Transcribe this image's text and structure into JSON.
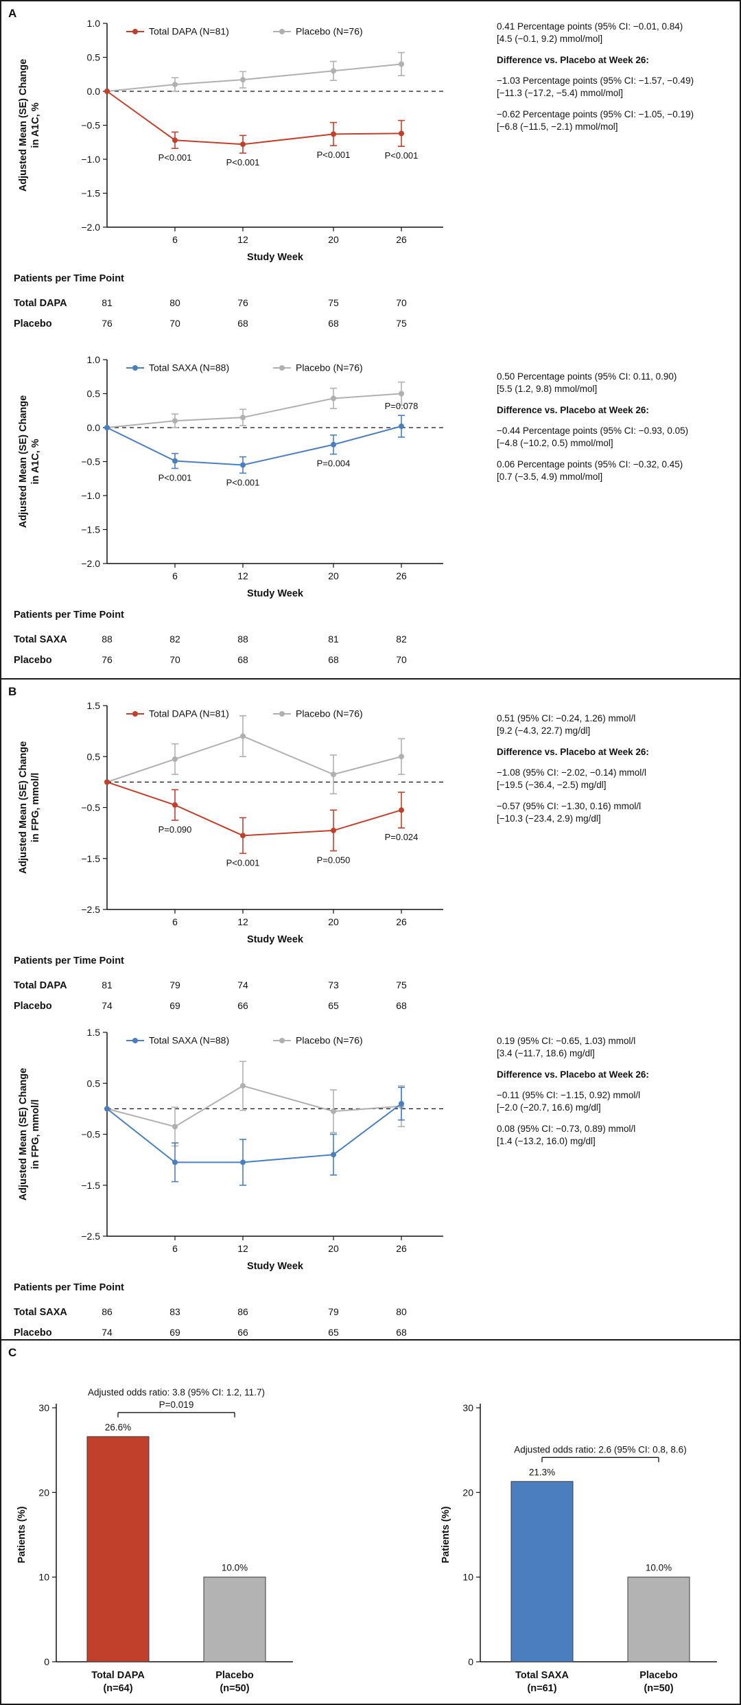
{
  "panels": [
    {
      "label": "A"
    },
    {
      "label": "B"
    },
    {
      "label": "C"
    }
  ],
  "colors": {
    "dapa_red": "#c0402c",
    "saxa_blue": "#4a7ebf",
    "placebo_gray": "#b0b0b0"
  },
  "chart_data": [
    {
      "id": "a1",
      "panel": "A",
      "type": "line",
      "y_label_lines": [
        "Adjusted Mean (SE) Change",
        "in A1C, %"
      ],
      "x_label": "Study Week",
      "ylim": [
        -2.0,
        1.0
      ],
      "yticks": [
        {
          "v": 1.0,
          "label": "1.0"
        },
        {
          "v": 0.5,
          "label": "0.5"
        },
        {
          "v": 0.0,
          "label": "0.0"
        },
        {
          "v": -0.5,
          "label": "−0.5"
        },
        {
          "v": -1.0,
          "label": "−1.0"
        },
        {
          "v": -1.5,
          "label": "−1.5"
        },
        {
          "v": -2.0,
          "label": "−2.0"
        }
      ],
      "x": [
        0,
        6,
        12,
        20,
        26
      ],
      "xticks": [
        {
          "v": 6,
          "label": "6"
        },
        {
          "v": 12,
          "label": "12"
        },
        {
          "v": 20,
          "label": "20"
        },
        {
          "v": 26,
          "label": "26"
        }
      ],
      "zero_line": true,
      "series": [
        {
          "name": "Total DAPA (N=81)",
          "color": "#c0402c",
          "values": [
            0,
            -0.72,
            -0.78,
            -0.63,
            -0.62
          ],
          "se": [
            0,
            0.12,
            0.13,
            0.17,
            0.19
          ]
        },
        {
          "name": "Placebo (N=76)",
          "color": "#b0b0b0",
          "values": [
            0,
            0.1,
            0.17,
            0.3,
            0.4
          ],
          "se": [
            0,
            0.1,
            0.12,
            0.14,
            0.17
          ]
        }
      ],
      "p_labels": [
        {
          "week": 6,
          "series": 0,
          "text": "P<0.001",
          "pos": "below"
        },
        {
          "week": 12,
          "series": 0,
          "text": "P<0.001",
          "pos": "below"
        },
        {
          "week": 20,
          "series": 0,
          "text": "P<0.001",
          "pos": "below"
        },
        {
          "week": 26,
          "series": 0,
          "text": "P<0.001",
          "pos": "below"
        }
      ],
      "annotation_groups": [
        {
          "bold": false,
          "lines": [
            "0.41 Percentage points (95% CI: −0.01, 0.84)",
            "[4.5 (−0.1, 9.2) mmol/mol]"
          ]
        },
        {
          "bold": true,
          "lines": [
            "Difference vs. Placebo at Week 26:"
          ]
        },
        {
          "bold": false,
          "lines": [
            "−1.03 Percentage points (95% CI: −1.57, −0.49)",
            "[−11.3 (−17.2, −5.4) mmol/mol]"
          ]
        },
        {
          "bold": false,
          "lines": [
            "−0.62 Percentage points (95% CI: −1.05, −0.19)",
            "[−6.8 (−11.5, −2.1) mmol/mol]"
          ]
        }
      ],
      "table": {
        "title": "Patients per Time Point",
        "rows": [
          {
            "label": "Total DAPA",
            "values": [
              "81",
              "80",
              "76",
              "75",
              "70"
            ]
          },
          {
            "label": "Placebo",
            "values": [
              "76",
              "70",
              "68",
              "68",
              "75"
            ]
          }
        ]
      }
    },
    {
      "id": "a2",
      "panel": "A",
      "type": "line",
      "y_label_lines": [
        "Adjusted Mean (SE) Change",
        "in A1C, %"
      ],
      "x_label": "Study Week",
      "ylim": [
        -2.0,
        1.0
      ],
      "yticks": [
        {
          "v": 1.0,
          "label": "1.0"
        },
        {
          "v": 0.5,
          "label": "0.5"
        },
        {
          "v": 0.0,
          "label": "0.0"
        },
        {
          "v": -0.5,
          "label": "−0.5"
        },
        {
          "v": -1.0,
          "label": "−1.0"
        },
        {
          "v": -1.5,
          "label": "−1.5"
        },
        {
          "v": -2.0,
          "label": "−2.0"
        }
      ],
      "x": [
        0,
        6,
        12,
        20,
        26
      ],
      "xticks": [
        {
          "v": 6,
          "label": "6"
        },
        {
          "v": 12,
          "label": "12"
        },
        {
          "v": 20,
          "label": "20"
        },
        {
          "v": 26,
          "label": "26"
        }
      ],
      "zero_line": true,
      "series": [
        {
          "name": "Total SAXA (N=88)",
          "color": "#4a7ebf",
          "values": [
            0,
            -0.49,
            -0.55,
            -0.25,
            0.02
          ],
          "se": [
            0,
            0.11,
            0.12,
            0.14,
            0.16
          ]
        },
        {
          "name": "Placebo (N=76)",
          "color": "#b0b0b0",
          "values": [
            0,
            0.1,
            0.15,
            0.43,
            0.5
          ],
          "se": [
            0,
            0.1,
            0.12,
            0.15,
            0.17
          ]
        }
      ],
      "p_labels": [
        {
          "week": 6,
          "series": 0,
          "text": "P<0.001",
          "pos": "below"
        },
        {
          "week": 12,
          "series": 0,
          "text": "P<0.001",
          "pos": "below"
        },
        {
          "week": 20,
          "series": 0,
          "text": "P=0.004",
          "pos": "below"
        },
        {
          "week": 26,
          "series": 0,
          "text": "P=0.078",
          "pos": "above"
        }
      ],
      "annotation_groups": [
        {
          "bold": false,
          "lines": [
            "0.50 Percentage points (95% CI: 0.11, 0.90)",
            "[5.5 (1.2, 9.8) mmol/mol]"
          ]
        },
        {
          "bold": true,
          "lines": [
            "Difference vs. Placebo at Week 26:"
          ]
        },
        {
          "bold": false,
          "lines": [
            "−0.44 Percentage points (95% CI: −0.93, 0.05)",
            "[−4.8 (−10.2, 0.5) mmol/mol]"
          ]
        },
        {
          "bold": false,
          "lines": [
            "0.06 Percentage points (95% CI: −0.32, 0.45)",
            "[0.7 (−3.5, 4.9) mmol/mol]"
          ]
        }
      ],
      "table": {
        "title": "Patients per Time Point",
        "rows": [
          {
            "label": "Total SAXA",
            "values": [
              "88",
              "82",
              "88",
              "81",
              "82"
            ]
          },
          {
            "label": "Placebo",
            "values": [
              "76",
              "70",
              "68",
              "68",
              "70"
            ]
          }
        ]
      }
    },
    {
      "id": "b1",
      "panel": "B",
      "type": "line",
      "y_label_lines": [
        "Adjusted Mean (SE) Change",
        "in FPG, mmol/l"
      ],
      "x_label": "Study Week",
      "ylim": [
        -2.5,
        1.5
      ],
      "yticks": [
        {
          "v": 1.5,
          "label": "1.5"
        },
        {
          "v": 0.5,
          "label": "0.5"
        },
        {
          "v": -0.5,
          "label": "−0.5"
        },
        {
          "v": -1.5,
          "label": "−1.5"
        },
        {
          "v": -2.5,
          "label": "−2.5"
        }
      ],
      "x": [
        0,
        6,
        12,
        20,
        26
      ],
      "xticks": [
        {
          "v": 6,
          "label": "6"
        },
        {
          "v": 12,
          "label": "12"
        },
        {
          "v": 20,
          "label": "20"
        },
        {
          "v": 26,
          "label": "26"
        }
      ],
      "zero_line": true,
      "series": [
        {
          "name": "Total DAPA (N=81)",
          "color": "#c0402c",
          "values": [
            0,
            -0.45,
            -1.05,
            -0.95,
            -0.55
          ],
          "se": [
            0,
            0.3,
            0.35,
            0.4,
            0.35
          ]
        },
        {
          "name": "Placebo (N=76)",
          "color": "#b0b0b0",
          "values": [
            0,
            0.45,
            0.9,
            0.15,
            0.5
          ],
          "se": [
            0,
            0.3,
            0.4,
            0.38,
            0.35
          ]
        }
      ],
      "p_labels": [
        {
          "week": 6,
          "series": 0,
          "text": "P=0.090",
          "pos": "below"
        },
        {
          "week": 12,
          "series": 0,
          "text": "P<0.001",
          "pos": "below"
        },
        {
          "week": 20,
          "series": 0,
          "text": "P=0.050",
          "pos": "below"
        },
        {
          "week": 26,
          "series": 0,
          "text": "P=0.024",
          "pos": "below"
        }
      ],
      "annotation_groups": [
        {
          "bold": false,
          "lines": [
            "0.51 (95% CI: −0.24, 1.26) mmol/l",
            "[9.2 (−4.3, 22.7) mg/dl]"
          ]
        },
        {
          "bold": true,
          "lines": [
            "Difference vs. Placebo at Week 26:"
          ]
        },
        {
          "bold": false,
          "lines": [
            "−1.08 (95% CI: −2.02, −0.14) mmol/l",
            "[−19.5 (−36.4, −2.5) mg/dl]"
          ]
        },
        {
          "bold": false,
          "lines": [
            "−0.57 (95% CI: −1.30, 0.16) mmol/l",
            "[−10.3 (−23.4, 2.9) mg/dl]"
          ]
        }
      ],
      "table": {
        "title": "Patients per Time Point",
        "rows": [
          {
            "label": "Total DAPA",
            "values": [
              "81",
              "79",
              "74",
              "73",
              "75"
            ]
          },
          {
            "label": "Placebo",
            "values": [
              "74",
              "69",
              "66",
              "65",
              "68"
            ]
          }
        ]
      }
    },
    {
      "id": "b2",
      "panel": "B",
      "type": "line",
      "y_label_lines": [
        "Adjusted Mean (SE) Change",
        "in FPG, mmol/l"
      ],
      "x_label": "Study Week",
      "ylim": [
        -2.5,
        1.5
      ],
      "yticks": [
        {
          "v": 1.5,
          "label": "1.5"
        },
        {
          "v": 0.5,
          "label": "0.5"
        },
        {
          "v": -0.5,
          "label": "−0.5"
        },
        {
          "v": -1.5,
          "label": "−1.5"
        },
        {
          "v": -2.5,
          "label": "−2.5"
        }
      ],
      "x": [
        0,
        6,
        12,
        20,
        26
      ],
      "xticks": [
        {
          "v": 6,
          "label": "6"
        },
        {
          "v": 12,
          "label": "12"
        },
        {
          "v": 20,
          "label": "20"
        },
        {
          "v": 26,
          "label": "26"
        }
      ],
      "zero_line": true,
      "series": [
        {
          "name": "Total SAXA (N=88)",
          "color": "#4a7ebf",
          "values": [
            0,
            -1.05,
            -1.05,
            -0.9,
            0.1
          ],
          "se": [
            0,
            0.38,
            0.45,
            0.4,
            0.32
          ]
        },
        {
          "name": "Placebo (N=76)",
          "color": "#b0b0b0",
          "values": [
            0,
            -0.35,
            0.45,
            -0.05,
            0.05
          ],
          "se": [
            0,
            0.38,
            0.48,
            0.42,
            0.4
          ]
        }
      ],
      "p_labels": [],
      "annotation_groups": [
        {
          "bold": false,
          "lines": [
            "0.19 (95% CI: −0.65, 1.03) mmol/l",
            "[3.4 (−11.7, 18.6) mg/dl]"
          ]
        },
        {
          "bold": true,
          "lines": [
            "Difference vs. Placebo at Week 26:"
          ]
        },
        {
          "bold": false,
          "lines": [
            "−0.11 (95% CI: −1.15, 0.92) mmol/l",
            "[−2.0 (−20.7, 16.6) mg/dl]"
          ]
        },
        {
          "bold": false,
          "lines": [
            "0.08 (95% CI: −0.73, 0.89) mmol/l",
            "[1.4 (−13.2, 16.0) mg/dl]"
          ]
        }
      ],
      "table": {
        "title": "Patients per Time Point",
        "rows": [
          {
            "label": "Total SAXA",
            "values": [
              "86",
              "83",
              "86",
              "79",
              "80"
            ]
          },
          {
            "label": "Placebo",
            "values": [
              "74",
              "69",
              "66",
              "65",
              "68"
            ]
          }
        ]
      }
    },
    {
      "id": "c1",
      "panel": "C",
      "type": "bar",
      "y_label": "Patients (%)",
      "ylim": [
        0,
        30
      ],
      "yticks": [
        {
          "v": 0,
          "label": "0"
        },
        {
          "v": 10,
          "label": "10"
        },
        {
          "v": 20,
          "label": "20"
        },
        {
          "v": 30,
          "label": "30"
        }
      ],
      "odds_text": "Adjusted odds ratio: 3.8 (95% CI: 1.2, 11.7)",
      "p_text": "P=0.019",
      "bars": [
        {
          "label_lines": [
            "Total DAPA",
            "(n=64)"
          ],
          "value": 26.6,
          "value_label": "26.6%",
          "color": "#c0402c"
        },
        {
          "label_lines": [
            "Placebo",
            "(n=50)"
          ],
          "value": 10.0,
          "value_label": "10.0%",
          "color": "#b3b3b3"
        }
      ]
    },
    {
      "id": "c2",
      "panel": "C",
      "type": "bar",
      "y_label": "Patients (%)",
      "ylim": [
        0,
        30
      ],
      "yticks": [
        {
          "v": 0,
          "label": "0"
        },
        {
          "v": 10,
          "label": "10"
        },
        {
          "v": 20,
          "label": "20"
        },
        {
          "v": 30,
          "label": "30"
        }
      ],
      "odds_text": "Adjusted odds ratio: 2.6 (95% CI: 0.8, 8.6)",
      "p_text": "",
      "bars": [
        {
          "label_lines": [
            "Total SAXA",
            "(n=61)"
          ],
          "value": 21.3,
          "value_label": "21.3%",
          "color": "#4a7ebf"
        },
        {
          "label_lines": [
            "Placebo",
            "(n=50)"
          ],
          "value": 10.0,
          "value_label": "10.0%",
          "color": "#b3b3b3"
        }
      ]
    }
  ]
}
